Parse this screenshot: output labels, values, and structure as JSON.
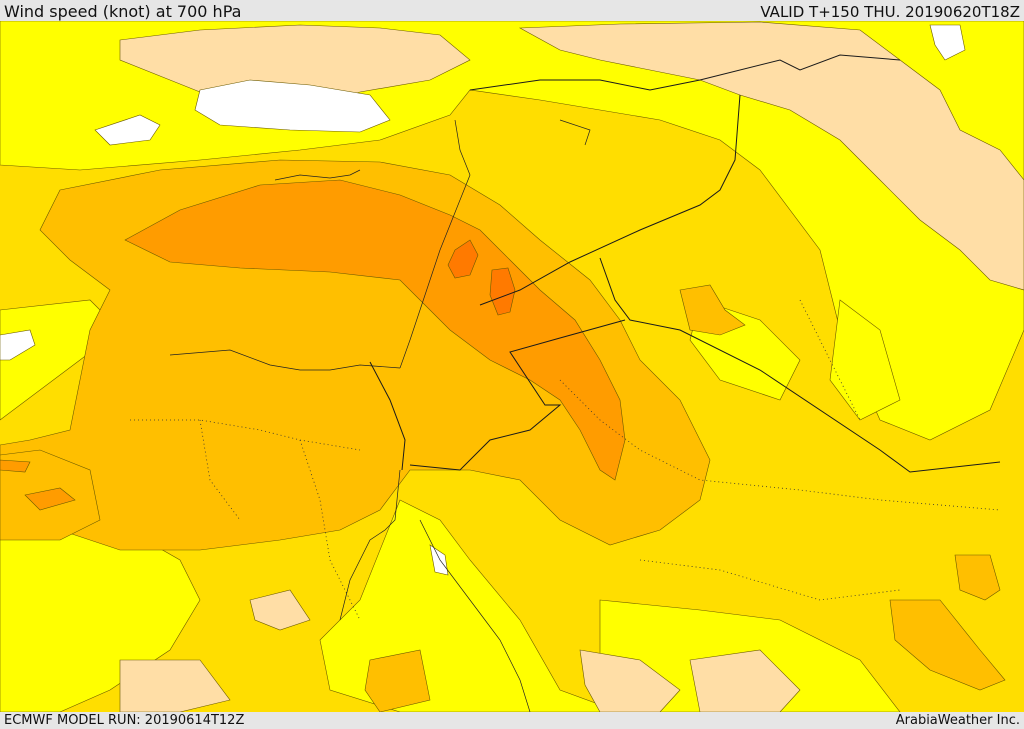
{
  "header": {
    "title": "Wind speed (knot) at 700 hPa",
    "valid": "VALID T+150 THU. 20190620T18Z"
  },
  "footer": {
    "model_run": "ECMWF MODEL RUN: 20190614T12Z",
    "credit": "ArabiaWeather Inc."
  },
  "map": {
    "colors": {
      "band_lowest": "#ffffff",
      "band_low": "#ffdea6",
      "band_1": "#ffff00",
      "band_2": "#ffde00",
      "band_3": "#ffbf00",
      "band_4": "#ff9c00",
      "band_5": "#ff7a00"
    }
  }
}
